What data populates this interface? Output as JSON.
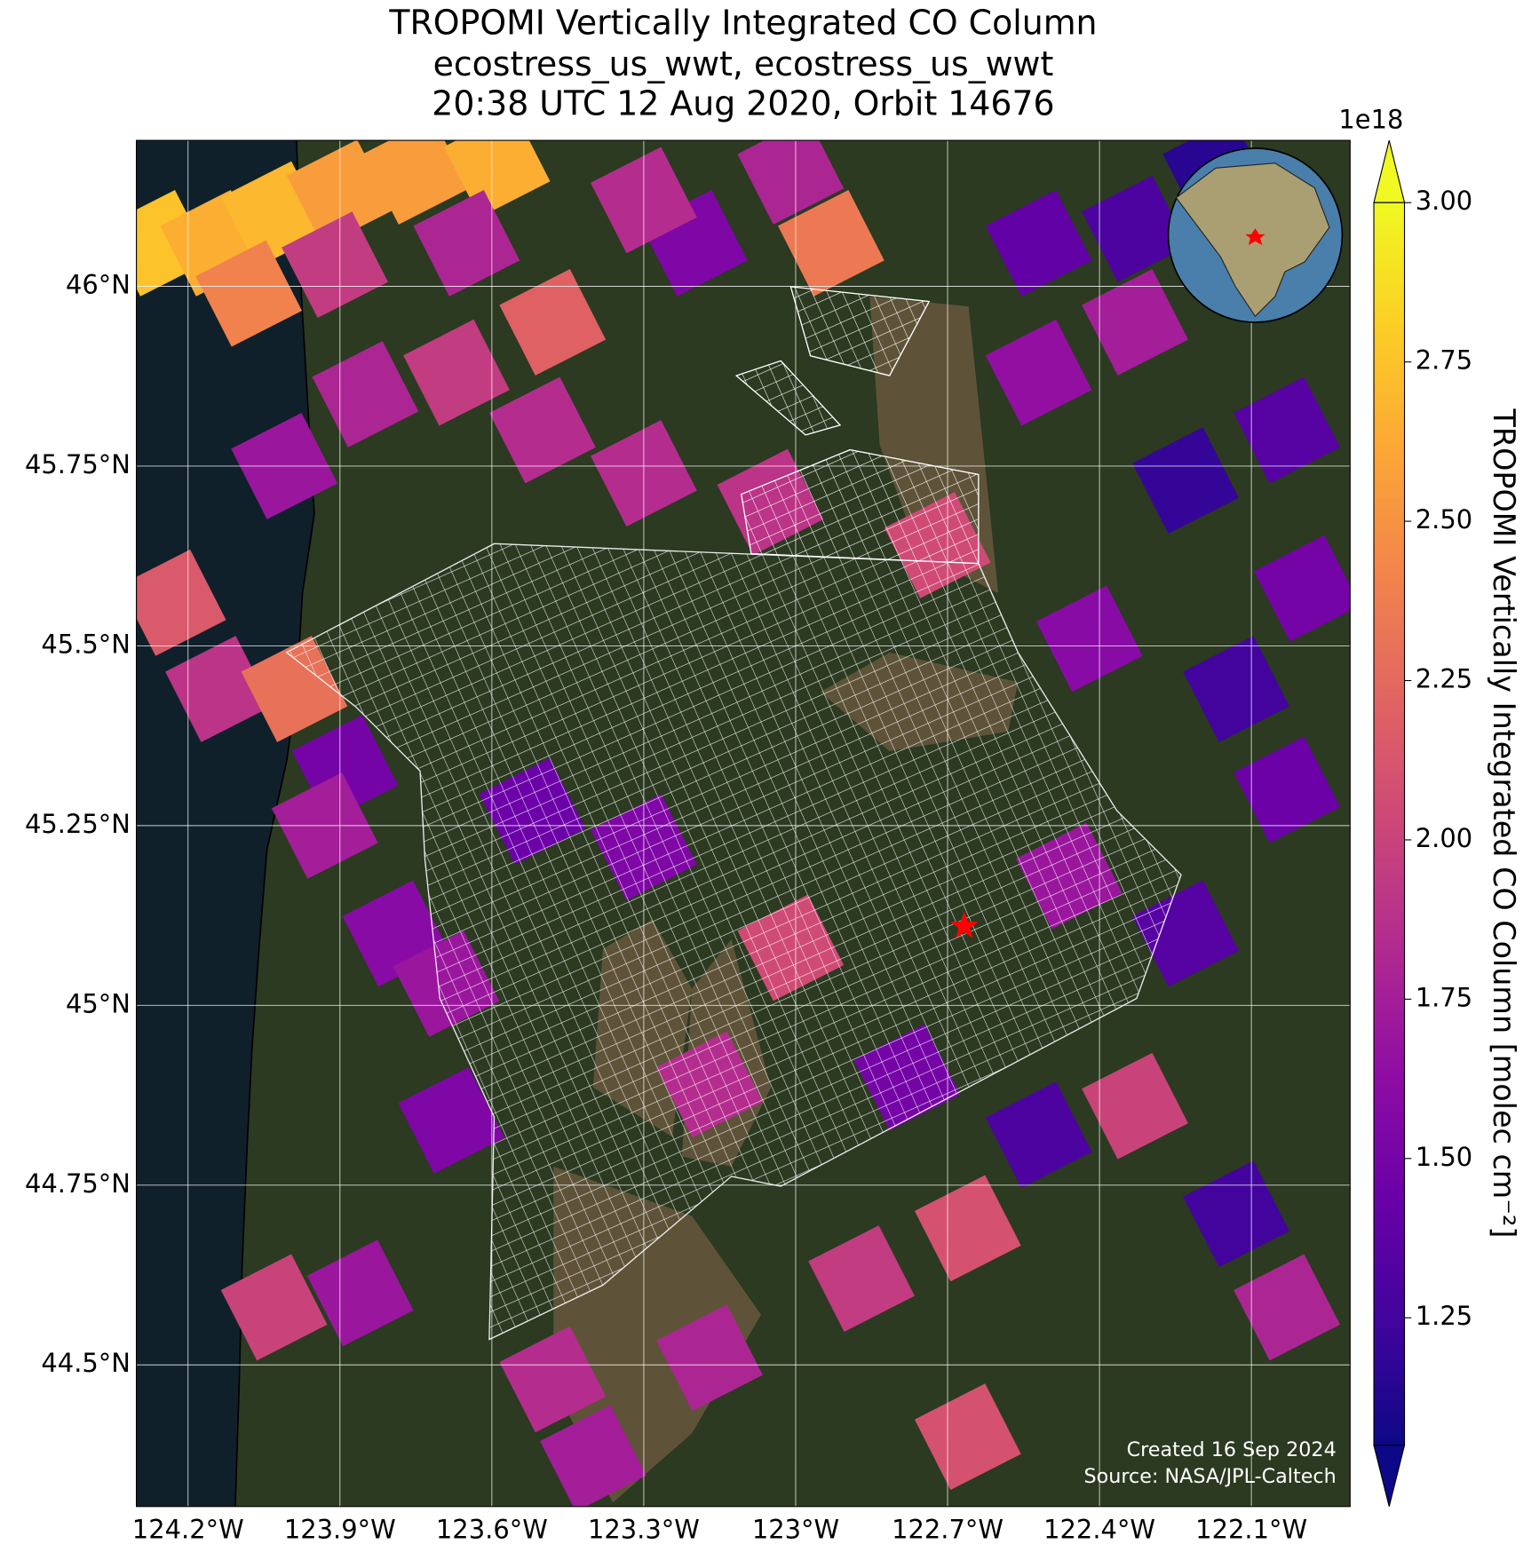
{
  "chart_data": {
    "type": "map",
    "title": [
      "TROPOMI Vertically Integrated CO Column",
      "ecostress_us_wwt, ecostress_us_wwt",
      "20:38 UTC 12 Aug 2020, Orbit 14676"
    ],
    "xlim": [
      -124.302,
      -121.905
    ],
    "ylim": [
      44.303,
      46.203
    ],
    "xticks": [
      {
        "value": -124.2,
        "label": "124.2°W"
      },
      {
        "value": -123.9,
        "label": "123.9°W"
      },
      {
        "value": -123.6,
        "label": "123.6°W"
      },
      {
        "value": -123.3,
        "label": "123.3°W"
      },
      {
        "value": -123,
        "label": "123°W"
      },
      {
        "value": -122.7,
        "label": "122.7°W"
      },
      {
        "value": -122.4,
        "label": "122.4°W"
      },
      {
        "value": -122.1,
        "label": "122.1°W"
      }
    ],
    "yticks": [
      {
        "value": 46,
        "label": "46°N"
      },
      {
        "value": 45.75,
        "label": "45.75°N"
      },
      {
        "value": 45.5,
        "label": "45.5°N"
      },
      {
        "value": 45.25,
        "label": "45.25°N"
      },
      {
        "value": 45,
        "label": "45°N"
      },
      {
        "value": 44.75,
        "label": "44.75°N"
      },
      {
        "value": 44.5,
        "label": "44.5°N"
      }
    ],
    "grid": true,
    "colorbar": {
      "label": "TROPOMI Vertically Integrated CO Column [molec cm⁻²]",
      "multiplier": "1e18",
      "clim": [
        1.05,
        3.0
      ],
      "colormap": "plasma",
      "extend": "both",
      "ticks": [
        {
          "value": 3.0,
          "label": "3.00"
        },
        {
          "value": 2.75,
          "label": "2.75"
        },
        {
          "value": 2.5,
          "label": "2.50"
        },
        {
          "value": 2.25,
          "label": "2.25"
        },
        {
          "value": 2.0,
          "label": "2.00"
        },
        {
          "value": 1.75,
          "label": "1.75"
        },
        {
          "value": 1.5,
          "label": "1.50"
        },
        {
          "value": 1.25,
          "label": "1.25"
        }
      ]
    },
    "tiles": {
      "lon": [
        -124.26,
        -124.15,
        -124.03,
        -123.9,
        -123.75,
        -123.59,
        -124.08,
        -123.91,
        -123.65,
        -123.48,
        -123.2,
        -122.93,
        -123.01,
        -123.3,
        -124.01,
        -123.85,
        -123.67,
        -123.5,
        -123.3,
        -123.05,
        -122.72,
        -124.23,
        -124.14,
        -123.99,
        -123.89,
        -123.93,
        -123.79,
        -123.68,
        -122.52,
        -122.33,
        -122.17,
        -122.52,
        -122.33,
        -122.03,
        -122.23,
        -121.99,
        -122.42,
        -122.13,
        -122.03,
        -122.23,
        -122.33,
        -122.52,
        -122.13,
        -122.66,
        -122.87,
        -123.17,
        -123.48,
        -123.4,
        -122.66,
        -122.03,
        -122.78,
        -123.01,
        -123.3,
        -123.52,
        -123.17,
        -123.69,
        -124.03,
        -123.86,
        -122.46
      ],
      "lat": [
        46.06,
        46.06,
        46.1,
        46.13,
        46.16,
        46.17,
        45.99,
        46.03,
        46.06,
        45.95,
        46.06,
        46.06,
        46.16,
        46.12,
        45.75,
        45.85,
        45.88,
        45.8,
        45.74,
        45.7,
        45.64,
        45.56,
        45.44,
        45.44,
        45.33,
        45.25,
        45.1,
        44.84,
        46.06,
        46.08,
        46.16,
        45.88,
        45.95,
        45.8,
        45.73,
        45.58,
        45.51,
        45.44,
        45.3,
        45.1,
        44.86,
        44.82,
        44.71,
        44.69,
        44.62,
        44.51,
        44.48,
        44.37,
        44.4,
        44.58,
        44.9,
        45.08,
        45.22,
        45.27,
        44.89,
        45.03,
        44.58,
        44.6,
        45.18
      ],
      "values": [
        2.75,
        2.65,
        2.7,
        2.55,
        2.55,
        2.65,
        2.4,
        1.95,
        1.8,
        2.2,
        1.55,
        2.35,
        1.8,
        1.85,
        1.7,
        1.8,
        1.95,
        1.85,
        1.85,
        1.9,
        2.05,
        2.15,
        1.9,
        2.3,
        1.5,
        1.75,
        1.6,
        1.55,
        1.4,
        1.3,
        1.15,
        1.65,
        1.75,
        1.35,
        1.2,
        1.5,
        1.6,
        1.25,
        1.45,
        1.35,
        2.0,
        1.3,
        1.25,
        2.1,
        1.95,
        1.8,
        1.85,
        1.75,
        2.1,
        1.8,
        1.5,
        2.05,
        1.55,
        1.45,
        1.85,
        1.7,
        2.0,
        1.7,
        1.7
      ]
    },
    "marker": {
      "lon": -122.667,
      "lat": 45.11,
      "color": "#ff0000"
    },
    "annotations": [
      "Created 16 Sep 2024",
      "Source: NASA/JPL-Caltech"
    ]
  }
}
